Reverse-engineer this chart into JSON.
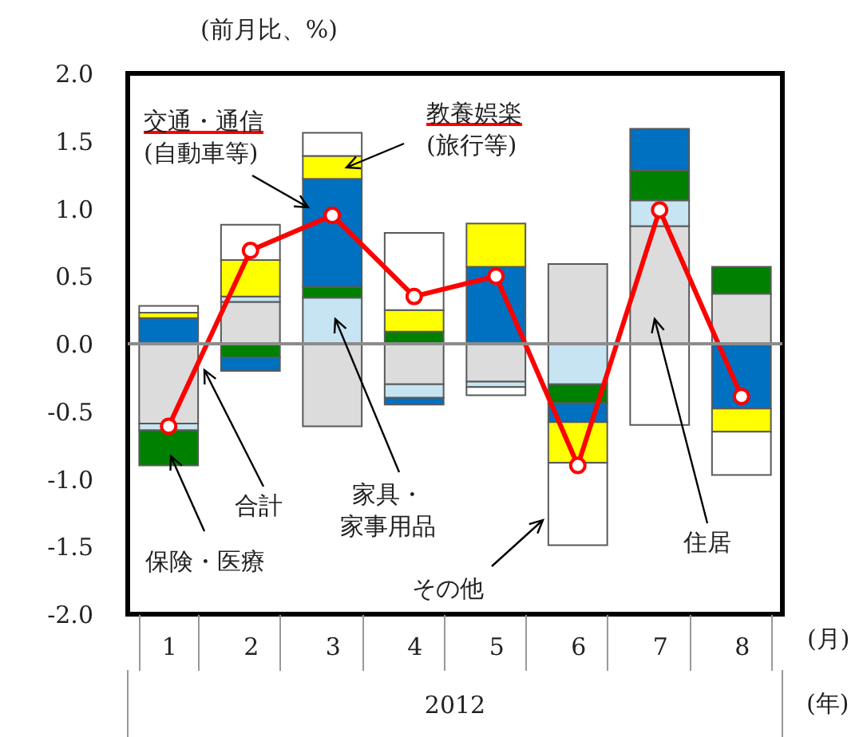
{
  "chart_data": {
    "type": "bar",
    "stacked": true,
    "ylabel": "(前月比、%)",
    "xlabel": "(月)",
    "annotations": [
      "2012",
      "(年)"
    ],
    "categories": [
      "1",
      "2",
      "3",
      "4",
      "5",
      "6",
      "7",
      "8"
    ],
    "ylim": [
      -2,
      2
    ],
    "yticks": [
      {
        "value": -2,
        "label": "-2.0"
      },
      {
        "value": -1.5,
        "label": "-1.5"
      },
      {
        "value": -1,
        "label": "-1.0"
      },
      {
        "value": -0.5,
        "label": "-0.5"
      },
      {
        "value": 0,
        "label": "0.0"
      },
      {
        "value": 0.5,
        "label": "0.5"
      },
      {
        "value": 1,
        "label": "1.0"
      },
      {
        "value": 1.5,
        "label": "1.5"
      },
      {
        "value": 2,
        "label": "2.0"
      }
    ],
    "grid": false,
    "legend": false,
    "ref_lines": [
      {
        "axis": "y",
        "value": 0,
        "color": "#8c8c8c"
      }
    ],
    "series": [
      {
        "name": "住居",
        "color": "#dcdcdc",
        "values": [
          -0.59,
          0.31,
          -0.61,
          -0.3,
          -0.28,
          0.59,
          0.87,
          0.37
        ]
      },
      {
        "name": "家具・家事用品",
        "color": "#c6e4f2",
        "values": [
          -0.05,
          0.04,
          0.34,
          -0.1,
          -0.04,
          -0.3,
          0.19,
          0
        ]
      },
      {
        "name": "保険・医療",
        "color": "#008000",
        "values": [
          -0.26,
          -0.1,
          0.08,
          0.09,
          0,
          -0.14,
          0.22,
          0.2
        ]
      },
      {
        "name": "交通・通信(自動車等)",
        "color": "#0070c0",
        "values": [
          0.19,
          -0.1,
          0.8,
          -0.05,
          0.57,
          -0.14,
          0.31,
          -0.48
        ]
      },
      {
        "name": "教養娯楽(旅行等)",
        "color": "#ffff00",
        "values": [
          0.04,
          0.27,
          0.17,
          0.16,
          0.32,
          -0.3,
          0,
          -0.17
        ]
      },
      {
        "name": "その他",
        "color": "#ffffff",
        "values": [
          0.05,
          0.26,
          0.17,
          0.57,
          -0.06,
          -0.61,
          -0.6,
          -0.32
        ]
      },
      {
        "name": "合計",
        "type": "line",
        "color": "#ff0000",
        "marker": "circle",
        "values": [
          -0.61,
          0.69,
          0.95,
          0.35,
          0.5,
          -0.9,
          0.99,
          -0.39
        ]
      }
    ]
  }
}
